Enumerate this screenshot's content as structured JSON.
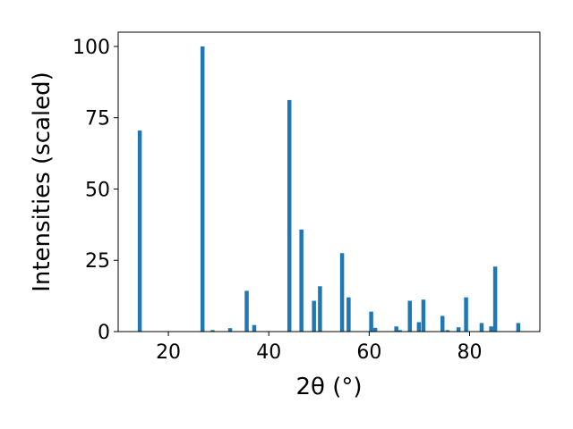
{
  "chart_data": {
    "type": "bar",
    "xlabel": "2θ (°)",
    "ylabel": "Intensities (scaled)",
    "xlim": [
      10,
      94
    ],
    "ylim": [
      0,
      105
    ],
    "xticks": [
      20,
      40,
      60,
      80
    ],
    "yticks": [
      0,
      25,
      50,
      75,
      100
    ],
    "bar_color": "#1f77b4",
    "bar_width": 0.8,
    "grid": false,
    "legend": "none",
    "x": [
      14.3,
      26.8,
      28.8,
      32.3,
      35.6,
      37.1,
      44.1,
      46.5,
      49.0,
      50.2,
      54.6,
      55.9,
      60.4,
      61.2,
      65.4,
      66.1,
      68.1,
      69.9,
      70.8,
      74.6,
      75.6,
      77.8,
      79.3,
      82.4,
      84.3,
      85.1,
      89.7
    ],
    "values": [
      70.5,
      100,
      0.5,
      1.2,
      14.3,
      2.3,
      81.2,
      35.8,
      10.8,
      15.9,
      27.5,
      12.0,
      7.0,
      1.3,
      1.8,
      0.5,
      10.8,
      3.3,
      11.2,
      5.5,
      0.5,
      1.5,
      12.0,
      3.0,
      1.8,
      22.8,
      3.0
    ]
  }
}
